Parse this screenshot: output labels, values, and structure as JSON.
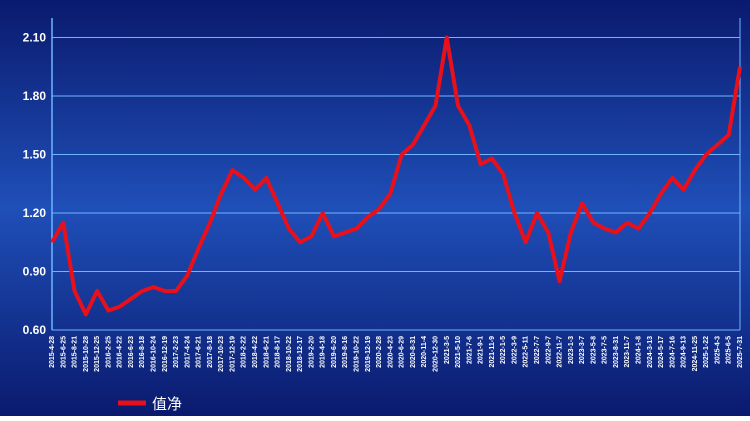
{
  "chart_data": {
    "type": "line",
    "categories": [
      "2015-4-28",
      "2015-6-25",
      "2015-8-21",
      "2015-10-28",
      "2015-12-25",
      "2016-2-25",
      "2016-4-22",
      "2016-6-23",
      "2016-8-18",
      "2016-10-24",
      "2016-12-19",
      "2017-2-23",
      "2017-4-24",
      "2017-6-21",
      "2017-8-18",
      "2017-10-23",
      "2017-12-19",
      "2018-2-22",
      "2018-4-22",
      "2018-6-21",
      "2018-8-17",
      "2018-10-22",
      "2018-12-17",
      "2019-2-20",
      "2019-4-18",
      "2019-6-20",
      "2019-8-16",
      "2019-10-22",
      "2019-12-19",
      "2020-2-28",
      "2020-4-23",
      "2020-6-29",
      "2020-8-31",
      "2020-11-4",
      "2020-12-30",
      "2021-3-5",
      "2021-5-10",
      "2021-7-6",
      "2021-9-1",
      "2021-11-9",
      "2022-1-5",
      "2022-3-9",
      "2022-5-11",
      "2022-7-7",
      "2022-9-7",
      "2022-11-7",
      "2023-1-3",
      "2023-3-7",
      "2023-5-8",
      "2023-7-5",
      "2023-8-31",
      "2023-11-7",
      "2024-1-8",
      "2024-3-13",
      "2024-5-17",
      "2024-7-16",
      "2024-9-13",
      "2024-11-25",
      "2025-1-22",
      "2025-4-3",
      "2025-6-5",
      "2025-7-31"
    ],
    "series": [
      {
        "name": "值净",
        "color": "#e8101a",
        "values": [
          1.05,
          1.15,
          0.8,
          0.68,
          0.8,
          0.7,
          0.72,
          0.76,
          0.8,
          0.82,
          0.8,
          0.8,
          0.88,
          1.02,
          1.15,
          1.3,
          1.42,
          1.38,
          1.32,
          1.38,
          1.25,
          1.12,
          1.05,
          1.08,
          1.2,
          1.08,
          1.1,
          1.12,
          1.18,
          1.22,
          1.3,
          1.5,
          1.55,
          1.65,
          1.75,
          2.1,
          1.75,
          1.65,
          1.45,
          1.48,
          1.4,
          1.2,
          1.05,
          1.2,
          1.1,
          0.85,
          1.1,
          1.25,
          1.15,
          1.12,
          1.1,
          1.15,
          1.12,
          1.2,
          1.3,
          1.38,
          1.32,
          1.42,
          1.5,
          1.55,
          1.6,
          1.95
        ]
      }
    ],
    "ylim": [
      0.6,
      2.2
    ],
    "yticks": [
      {
        "value": 0.6,
        "label": "0.60"
      },
      {
        "value": 0.9,
        "label": "0.90"
      },
      {
        "value": 1.2,
        "label": "1.20"
      },
      {
        "value": 1.5,
        "label": "1.50"
      },
      {
        "value": 1.8,
        "label": "1.80"
      },
      {
        "value": 2.1,
        "label": "2.10"
      }
    ],
    "grid": true,
    "legend": "bottom-left"
  }
}
